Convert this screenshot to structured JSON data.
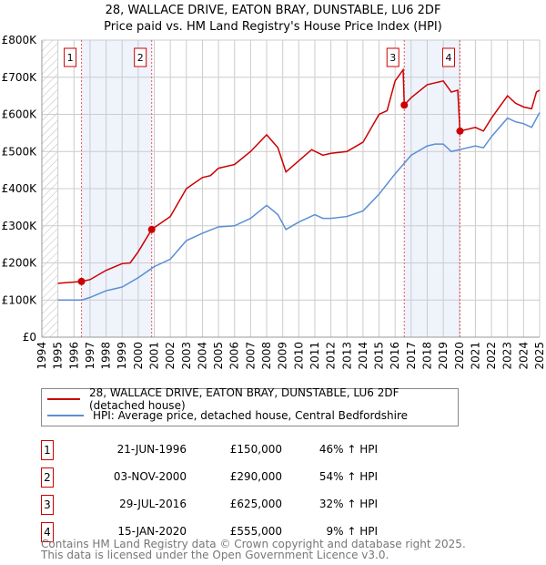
{
  "chart_data": {
    "type": "line",
    "title": "28, WALLACE DRIVE, EATON BRAY, DUNSTABLE, LU6 2DF",
    "subtitle": "Price paid vs. HM Land Registry's House Price Index (HPI)",
    "xlim": [
      1994,
      2025
    ],
    "ylim": [
      0,
      800000
    ],
    "y_ticks": [
      {
        "v": 0,
        "label": "£0"
      },
      {
        "v": 100000,
        "label": "£100K"
      },
      {
        "v": 200000,
        "label": "£200K"
      },
      {
        "v": 300000,
        "label": "£300K"
      },
      {
        "v": 400000,
        "label": "£400K"
      },
      {
        "v": 500000,
        "label": "£500K"
      },
      {
        "v": 600000,
        "label": "£600K"
      },
      {
        "v": 700000,
        "label": "£700K"
      },
      {
        "v": 800000,
        "label": "£800K"
      }
    ],
    "x_ticks": [
      "1994",
      "1995",
      "1996",
      "1997",
      "1998",
      "1999",
      "2000",
      "2001",
      "2002",
      "2003",
      "2004",
      "2005",
      "2006",
      "2007",
      "2008",
      "2009",
      "2010",
      "2011",
      "2012",
      "2013",
      "2014",
      "2015",
      "2016",
      "2017",
      "2018",
      "2019",
      "2020",
      "2021",
      "2022",
      "2023",
      "2024",
      "2025"
    ],
    "grid": true,
    "shaded_ranges": [
      [
        1996.47,
        2000.84
      ],
      [
        2016.57,
        2020.04
      ]
    ],
    "hatched_range": [
      1994,
      1995
    ],
    "series": [
      {
        "name": "28, WALLACE DRIVE, EATON BRAY, DUNSTABLE, LU6 2DF (detached house)",
        "color": "#cc0000",
        "x": [
          1995,
          1996.47,
          1997,
          1998,
          1999,
          1999.5,
          2000,
          2000.84,
          2001,
          2002,
          2003,
          2004,
          2004.5,
          2005,
          2006,
          2007,
          2008,
          2008.7,
          2009.2,
          2010,
          2010.8,
          2011.5,
          2012,
          2013,
          2014,
          2015,
          2015.5,
          2016,
          2016.5,
          2016.57,
          2017,
          2018,
          2019,
          2019.5,
          2019.9,
          2020.04,
          2021,
          2021.5,
          2022,
          2023,
          2023.5,
          2024,
          2024.5,
          2024.8,
          2025
        ],
        "y": [
          145000,
          150000,
          155000,
          180000,
          198000,
          200000,
          230000,
          290000,
          295000,
          325000,
          400000,
          430000,
          435000,
          455000,
          465000,
          500000,
          545000,
          510000,
          445000,
          475000,
          505000,
          490000,
          495000,
          500000,
          525000,
          600000,
          610000,
          690000,
          720000,
          625000,
          645000,
          680000,
          690000,
          660000,
          665000,
          555000,
          565000,
          555000,
          590000,
          650000,
          630000,
          620000,
          615000,
          660000,
          665000
        ]
      },
      {
        "name": "HPI: Average price, detached house, Central Bedfordshire",
        "color": "#5b8fd4",
        "x": [
          1995,
          1996.5,
          1997,
          1998,
          1999,
          2000,
          2001,
          2002,
          2003,
          2004,
          2005,
          2006,
          2007,
          2008,
          2008.7,
          2009.2,
          2010,
          2011,
          2011.5,
          2012,
          2013,
          2014,
          2015,
          2016,
          2017,
          2018,
          2018.5,
          2019,
          2019.5,
          2020,
          2021,
          2021.5,
          2022,
          2023,
          2023.5,
          2024,
          2024.5,
          2025
        ],
        "y": [
          100000,
          100000,
          107000,
          125000,
          135000,
          160000,
          190000,
          210000,
          260000,
          280000,
          297000,
          300000,
          320000,
          355000,
          330000,
          290000,
          310000,
          330000,
          320000,
          320000,
          325000,
          340000,
          385000,
          440000,
          490000,
          515000,
          520000,
          520000,
          500000,
          505000,
          515000,
          510000,
          540000,
          590000,
          580000,
          575000,
          565000,
          605000
        ]
      }
    ],
    "sales": [
      {
        "id": "1",
        "x": 1996.47,
        "price": 150000,
        "date": "21-JUN-1996",
        "price_label": "£150,000",
        "hpi": "46% ↑ HPI"
      },
      {
        "id": "2",
        "x": 2000.84,
        "price": 290000,
        "date": "03-NOV-2000",
        "price_label": "£290,000",
        "hpi": "54% ↑ HPI"
      },
      {
        "id": "3",
        "x": 2016.57,
        "price": 625000,
        "date": "29-JUL-2016",
        "price_label": "£625,000",
        "hpi": "32% ↑ HPI"
      },
      {
        "id": "4",
        "x": 2020.04,
        "price": 555000,
        "date": "15-JAN-2020",
        "price_label": "£555,000",
        "hpi": "9% ↑ HPI"
      }
    ]
  },
  "legend": {
    "property": "28, WALLACE DRIVE, EATON BRAY, DUNSTABLE, LU6 2DF (detached house)",
    "hpi": "HPI: Average price, detached house, Central Bedfordshire"
  },
  "footer": {
    "line1": "Contains HM Land Registry data © Crown copyright and database right 2025.",
    "line2": "This data is licensed under the Open Government Licence v3.0."
  }
}
